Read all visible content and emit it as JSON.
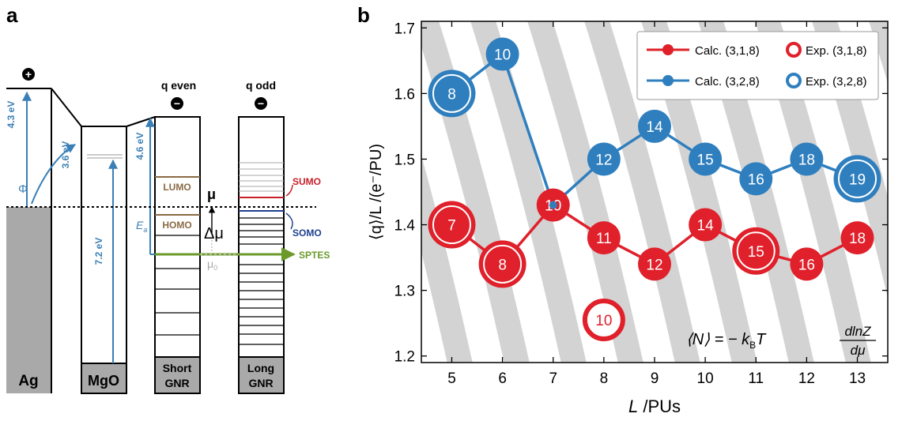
{
  "panel_a": {
    "panel_label": "a",
    "plus_sign": "+",
    "minus_sign": "−",
    "columns": {
      "ag": "Ag",
      "mgo": "MgO",
      "short_line1": "Short",
      "short_line2": "GNR",
      "long_line1": "Long",
      "long_line2": "GNR"
    },
    "headers": {
      "q_even": "q even",
      "q_odd": "q odd"
    },
    "energies": {
      "e43": "4.3 eV",
      "e36": "3.6 eV",
      "e72": "7.2 eV",
      "e46": "4.6 eV",
      "phi": "Φ",
      "ea": "E",
      "ea_sub": "a"
    },
    "levels": {
      "lumo": "LUMO",
      "homo": "HOMO",
      "mu": "μ",
      "delta_mu": "Δμ",
      "mu0": "μ",
      "mu0_sub": "0",
      "sumo": "SUMO",
      "somo": "SOMO",
      "sptes": "SPTES"
    },
    "colors": {
      "arrow": "#3a7fb5",
      "lumo": "#8a6a44",
      "sumo": "#c8202a",
      "somo": "#1f3f8f",
      "sptes": "#6b9a2a",
      "ag_fill": "#a9a9a9",
      "gnr_fill": "#a9a9a9"
    }
  },
  "chart_data": {
    "type": "line",
    "panel_label": "b",
    "xlabel_italic": "L",
    "xlabel_rest": " /PUs",
    "ylabel": "⟨q⟩/L /(e⁻/PU)",
    "xlim": [
      4.4,
      13.6
    ],
    "ylim": [
      1.19,
      1.71
    ],
    "xticks": [
      5,
      6,
      7,
      8,
      9,
      10,
      11,
      12,
      13
    ],
    "yticks": [
      1.2,
      1.3,
      1.4,
      1.5,
      1.6,
      1.7
    ],
    "grid": false,
    "legend_position": "top-right",
    "series": [
      {
        "name": "Calc. (3,1,8)",
        "color": "#e0202a",
        "x": [
          5,
          6,
          7,
          8,
          9,
          10,
          11,
          12,
          13
        ],
        "y": [
          1.4,
          1.34,
          1.43,
          1.38,
          1.34,
          1.4,
          1.36,
          1.34,
          1.38
        ],
        "labels": [
          "7",
          "8",
          "10",
          "11",
          "12",
          "14",
          "15",
          "16",
          "18"
        ]
      },
      {
        "name": "Calc. (3,2,8)",
        "color": "#2f7fbf",
        "x": [
          5,
          6,
          7,
          8,
          9,
          10,
          11,
          12,
          13
        ],
        "y": [
          1.6,
          1.66,
          1.43,
          1.5,
          1.55,
          1.5,
          1.47,
          1.5,
          1.47
        ],
        "labels": [
          "8",
          "10",
          "",
          "12",
          "14",
          "15",
          "16",
          "18",
          "19"
        ]
      }
    ],
    "experimental": [
      {
        "name": "Exp. (3,1,8)",
        "color": "#e0202a",
        "points": [
          {
            "x": 5,
            "y": 1.4,
            "label": "7"
          },
          {
            "x": 6,
            "y": 1.34,
            "label": "8"
          },
          {
            "x": 8,
            "y": 1.255,
            "label": "10",
            "hollow": true
          },
          {
            "x": 11,
            "y": 1.36,
            "label": "15"
          }
        ]
      },
      {
        "name": "Exp. (3,2,8)",
        "color": "#2f7fbf",
        "points": [
          {
            "x": 5,
            "y": 1.6,
            "label": "8"
          },
          {
            "x": 13,
            "y": 1.47,
            "label": "19"
          }
        ]
      }
    ],
    "formula": {
      "lhs": "⟨N⟩ = − k",
      "sub_b": "B",
      "t": "T",
      "num": "dlnZ",
      "den": "dμ"
    }
  }
}
